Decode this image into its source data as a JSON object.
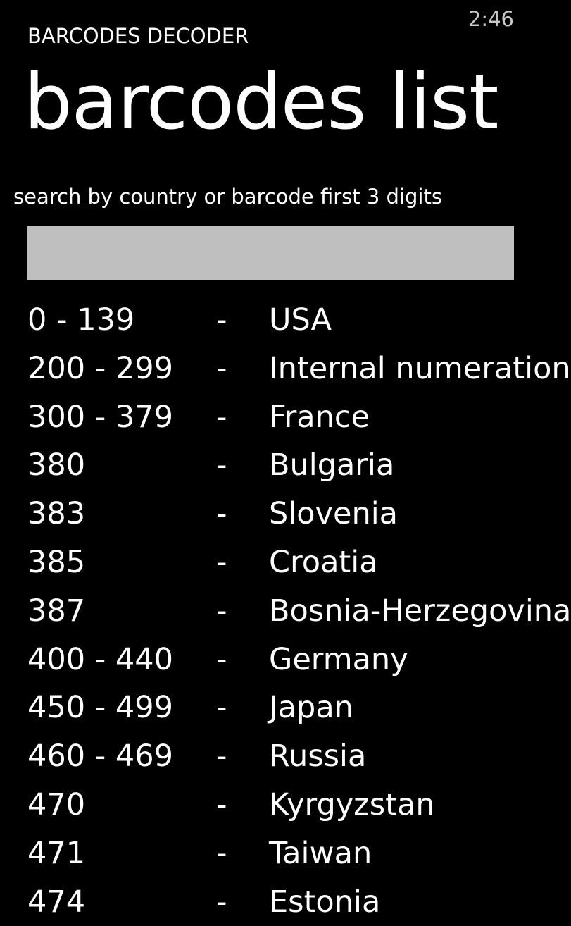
{
  "status_bar": {
    "time": "2:46"
  },
  "header": {
    "app_title": "BARCODES DECODER",
    "page_title": "barcodes list"
  },
  "search": {
    "label": "search by country or barcode first 3 digits",
    "value": "",
    "placeholder": ""
  },
  "list": {
    "separator": "-",
    "rows": [
      {
        "code": "0 - 139",
        "country": "USA"
      },
      {
        "code": "200 - 299",
        "country": "Internal numeration"
      },
      {
        "code": "300 - 379",
        "country": "France"
      },
      {
        "code": "380",
        "country": "Bulgaria"
      },
      {
        "code": "383",
        "country": "Slovenia"
      },
      {
        "code": "385",
        "country": "Croatia"
      },
      {
        "code": "387",
        "country": "Bosnia-Herzegovina"
      },
      {
        "code": "400 - 440",
        "country": "Germany"
      },
      {
        "code": "450 - 499",
        "country": "Japan"
      },
      {
        "code": "460 - 469",
        "country": "Russia"
      },
      {
        "code": "470",
        "country": "Kyrgyzstan"
      },
      {
        "code": "471",
        "country": "Taiwan"
      },
      {
        "code": "474",
        "country": "Estonia"
      }
    ]
  },
  "colors": {
    "background": "#000000",
    "text": "#ffffff",
    "input_background": "#bfbfbf",
    "status_text": "#c8c8c8"
  }
}
